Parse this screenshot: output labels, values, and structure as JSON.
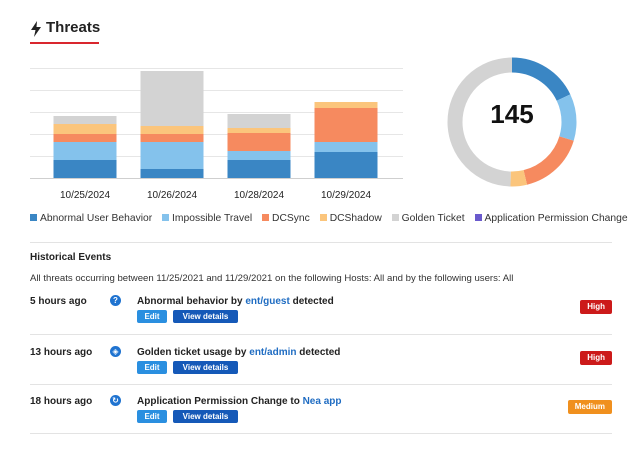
{
  "header": {
    "title": "Threats",
    "icon": "bolt-icon",
    "accent": "#d9262e"
  },
  "chart_data": {
    "type": "bar",
    "stacked": true,
    "categories": [
      "10/25/2024",
      "10/26/2024",
      "10/28/2024",
      "10/29/2024"
    ],
    "series": [
      {
        "name": "Abnormal User Behavior",
        "color": "#3a86c4",
        "values": [
          18,
          9,
          18,
          26
        ]
      },
      {
        "name": "Impossible Travel",
        "color": "#84c2ec",
        "values": [
          18,
          27,
          9,
          10
        ]
      },
      {
        "name": "DCSync",
        "color": "#f68a5f",
        "values": [
          8,
          8,
          18,
          34
        ]
      },
      {
        "name": "DCShadow",
        "color": "#fbc57c",
        "values": [
          10,
          8,
          5,
          6
        ]
      },
      {
        "name": "Golden Ticket",
        "color": "#d3d3d3",
        "values": [
          8,
          55,
          14,
          0
        ]
      },
      {
        "name": "Application Permission Change",
        "color": "#6a5acd",
        "values": [
          0,
          0,
          0,
          0
        ]
      }
    ],
    "ylim": [
      0,
      110
    ],
    "grid": true,
    "xlabel": "",
    "ylabel": ""
  },
  "donut": {
    "total": "145",
    "segments": [
      {
        "value": 26,
        "color": "#3a86c4"
      },
      {
        "value": 17,
        "color": "#84c2ec"
      },
      {
        "value": 24,
        "color": "#f68a5f"
      },
      {
        "value": 6,
        "color": "#fbc57c"
      },
      {
        "value": 72,
        "color": "#d3d3d3"
      }
    ]
  },
  "legend": [
    {
      "label": "Abnormal User Behavior",
      "color": "#3a86c4"
    },
    {
      "label": "Impossible Travel",
      "color": "#84c2ec"
    },
    {
      "label": "DCSync",
      "color": "#f68a5f"
    },
    {
      "label": "DCShadow",
      "color": "#fbc57c"
    },
    {
      "label": "Golden Ticket",
      "color": "#d3d3d3"
    },
    {
      "label": "Application Permission Change",
      "color": "#6a5acd"
    }
  ],
  "historical": {
    "title": "Historical Events",
    "description": "All threats occurring between 11/25/2021 and 11/29/2021 on the following Hosts: All and by the following users: All",
    "events": [
      {
        "time": "5 hours ago",
        "icon": "question-icon",
        "glyph": "?",
        "prefix": "Abnormal behavior by ",
        "link": "ent/guest",
        "suffix": " detected",
        "edit": "Edit",
        "view": "View details",
        "severity": "High",
        "severity_color": "#cc1a1a"
      },
      {
        "time": "13 hours ago",
        "icon": "ticket-icon",
        "glyph": "◈",
        "prefix": "Golden ticket usage by ",
        "link": "ent/admin",
        "suffix": " detected",
        "edit": "Edit",
        "view": "View details",
        "severity": "High",
        "severity_color": "#cc1a1a"
      },
      {
        "time": "18 hours ago",
        "icon": "refresh-icon",
        "glyph": "↻",
        "prefix": "Application Permission Change to ",
        "link": "Nea app",
        "suffix": "",
        "edit": "Edit",
        "view": "View details",
        "severity": "Medium",
        "severity_color": "#f0901e"
      }
    ]
  }
}
